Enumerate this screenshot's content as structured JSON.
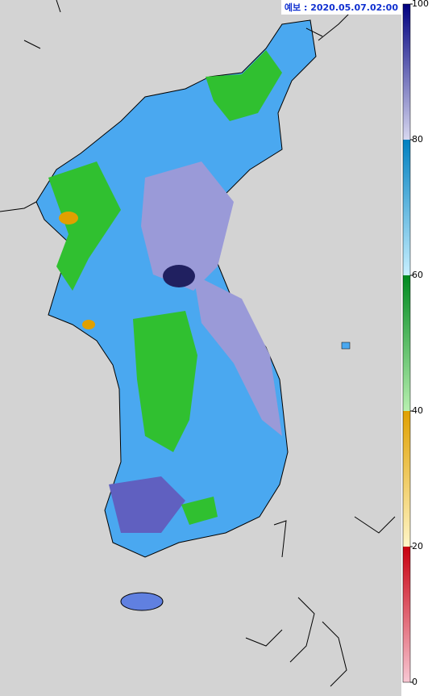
{
  "header": {
    "title": "예보 : 2020.05.07.02:00"
  },
  "colorbar": {
    "lim": [
      0,
      100
    ],
    "ticks": [
      0,
      20,
      40,
      60,
      80,
      100
    ],
    "bands": [
      [
        "#f8c8d4",
        "#c80010"
      ],
      [
        "#fff6c8",
        "#e0a000"
      ],
      [
        "#b8f0b0",
        "#008a20"
      ],
      [
        "#c8f0ff",
        "#0080c0"
      ],
      [
        "#d8d8f0",
        "#000080"
      ]
    ]
  }
}
